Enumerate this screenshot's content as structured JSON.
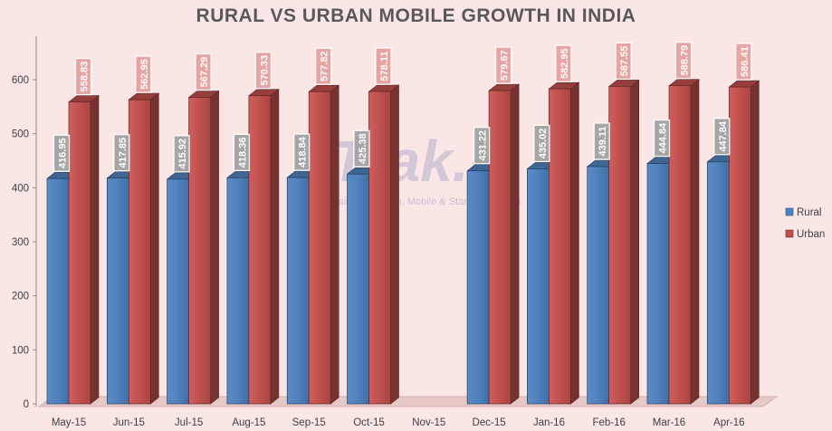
{
  "chart_data": {
    "type": "bar",
    "title": "RURAL VS URBAN MOBILE GROWTH IN INDIA",
    "categories": [
      "May-15",
      "Jun-15",
      "Jul-15",
      "Aug-15",
      "Sep-15",
      "Oct-15",
      "Nov-15",
      "Dec-15",
      "Jan-16",
      "Feb-16",
      "Mar-16",
      "Apr-16"
    ],
    "series": [
      {
        "name": "Rural",
        "color": "#4f81bd",
        "values": [
          416.95,
          417.85,
          415.92,
          418.36,
          418.84,
          425.38,
          null,
          431.22,
          435.02,
          439.11,
          444.84,
          447.84
        ]
      },
      {
        "name": "Urban",
        "color": "#c0504d",
        "values": [
          558.83,
          562.95,
          567.29,
          570.33,
          577.82,
          578.11,
          null,
          579.67,
          582.95,
          587.55,
          588.79,
          586.41
        ]
      }
    ],
    "ylim": [
      0,
      650
    ],
    "yticks": [
      0,
      100,
      200,
      300,
      400,
      500,
      600
    ],
    "grid": false,
    "legend_position": "right",
    "bar_style": "3d"
  },
  "watermark": {
    "logo": "Trak.in",
    "tagline": "Business of Tech, Mobile & Startups in India"
  }
}
